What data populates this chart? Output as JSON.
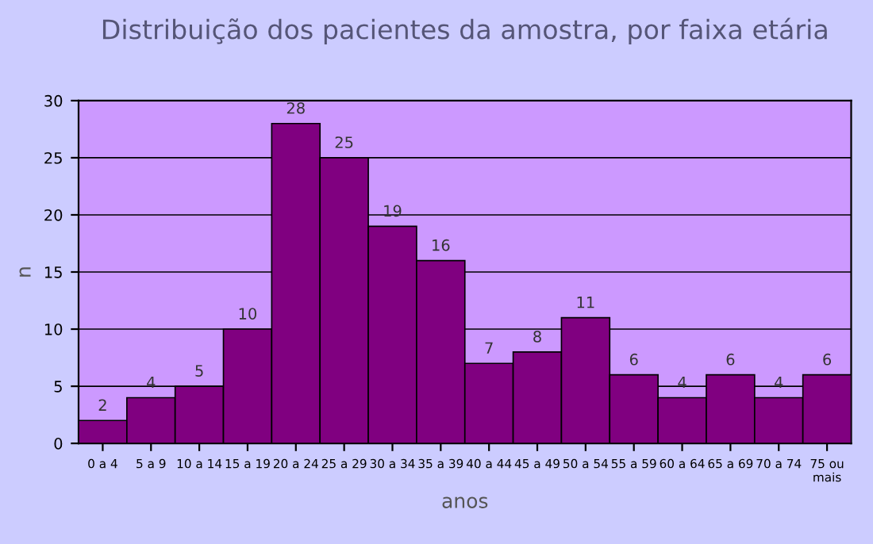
{
  "chart_data": {
    "type": "bar",
    "title": "Distribuição dos pacientes da amostra, por faixa etária",
    "xlabel": "anos",
    "ylabel": "n",
    "categories": [
      "0 a 4",
      "5 a 9",
      "10 a 14",
      "15 a 19",
      "20 a 24",
      "25 a 29",
      "30 a 34",
      "35 a 39",
      "40 a 44",
      "45 a 49",
      "50 a 54",
      "55 a 59",
      "60 a 64",
      "65 a 69",
      "70 a 74",
      "75 ou\nmais"
    ],
    "values": [
      2,
      4,
      5,
      10,
      28,
      25,
      19,
      16,
      7,
      8,
      11,
      6,
      4,
      6,
      4,
      6
    ],
    "color": "#800080",
    "ylim": [
      0,
      30
    ],
    "yticks": [
      0,
      5,
      10,
      15,
      20,
      25,
      30
    ],
    "grid": "y",
    "data_labels": true
  }
}
